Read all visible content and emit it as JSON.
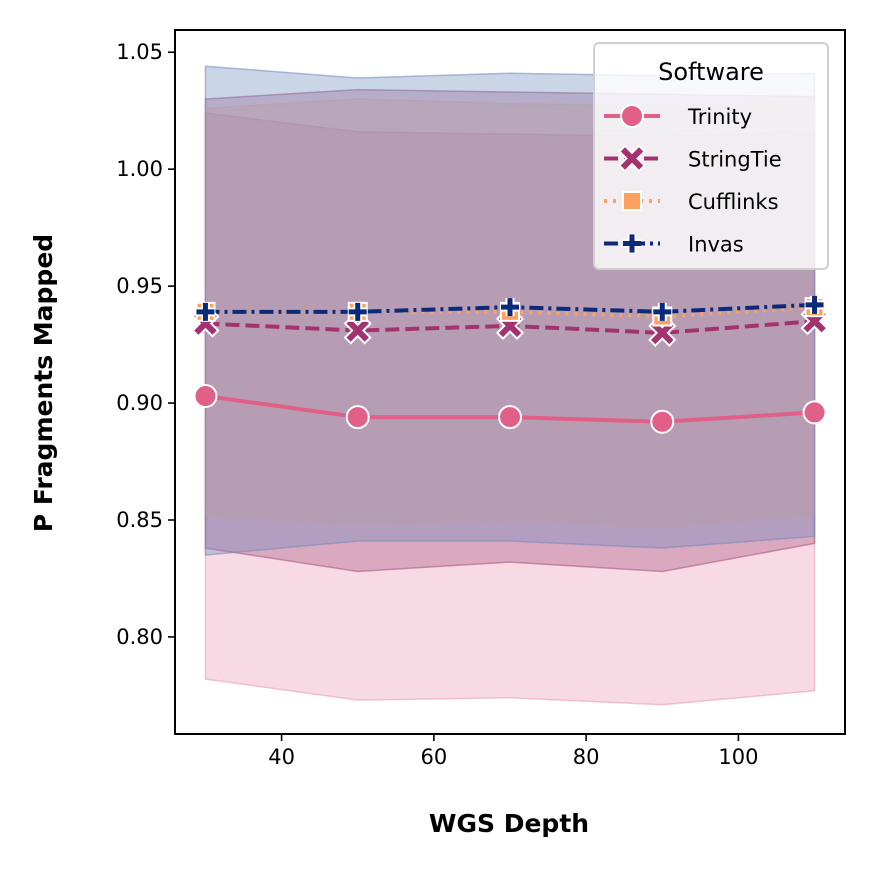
{
  "chart_data": {
    "type": "line",
    "xlabel": "WGS Depth",
    "ylabel": "P Fragments Mapped",
    "xlim": [
      26,
      114
    ],
    "ylim": [
      0.7585,
      1.0595
    ],
    "x_ticks": [
      40,
      60,
      80,
      100
    ],
    "x_tick_labels": [
      "40",
      "60",
      "80",
      "100"
    ],
    "y_ticks": [
      0.8,
      0.85,
      0.9,
      0.95,
      1.0,
      1.05
    ],
    "y_tick_labels": [
      "0.80",
      "0.85",
      "0.90",
      "0.95",
      "1.00",
      "1.05"
    ],
    "x": [
      30,
      50,
      70,
      90,
      110
    ],
    "legend": {
      "title": "Software",
      "placement": "top-right"
    },
    "series": [
      {
        "name": "Trinity",
        "color": "#e06088",
        "marker": "circle",
        "line_style": "solid",
        "values": [
          0.903,
          0.894,
          0.894,
          0.892,
          0.896
        ],
        "band_lower": [
          0.782,
          0.773,
          0.774,
          0.771,
          0.777
        ],
        "band_upper": [
          1.024,
          1.016,
          1.015,
          1.014,
          1.016
        ],
        "band_color": "#e899b4"
      },
      {
        "name": "StringTie",
        "color": "#a3336e",
        "marker": "x",
        "line_style": "dashed",
        "values": [
          0.934,
          0.931,
          0.933,
          0.93,
          0.935
        ],
        "band_lower": [
          0.838,
          0.828,
          0.832,
          0.828,
          0.84
        ],
        "band_upper": [
          1.03,
          1.034,
          1.033,
          1.032,
          1.031
        ],
        "band_color": "#a5527c"
      },
      {
        "name": "Cufflinks",
        "color": "#fca260",
        "marker": "square",
        "line_style": "dotted",
        "values": [
          0.939,
          0.939,
          0.939,
          0.937,
          0.941
        ],
        "band_lower": [
          0.852,
          0.848,
          0.85,
          0.847,
          0.852
        ],
        "band_upper": [
          1.026,
          1.03,
          1.028,
          1.027,
          1.03
        ],
        "band_color": "#e8a78e"
      },
      {
        "name": "Invas",
        "color": "#0d2a78",
        "marker": "plus",
        "line_style": "dashdot",
        "values": [
          0.939,
          0.939,
          0.941,
          0.939,
          0.942
        ],
        "band_lower": [
          0.835,
          0.841,
          0.841,
          0.838,
          0.843
        ],
        "band_upper": [
          1.044,
          1.039,
          1.041,
          1.04,
          1.041
        ],
        "band_color": "#6f8bbf"
      }
    ]
  }
}
